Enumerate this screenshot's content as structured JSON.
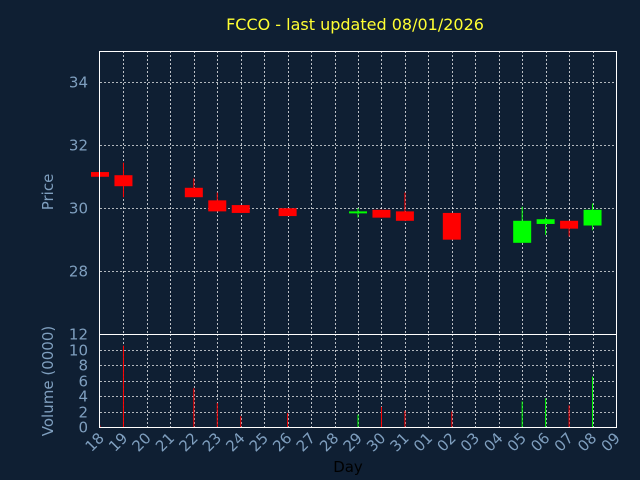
{
  "chart_data": {
    "type": "candlestick",
    "title": "FCCO - last updated 08/01/2026",
    "price_ylabel": "Price",
    "volume_ylabel": "Volume (0000)",
    "xlabel": "Day",
    "x_tick_labels": [
      "18",
      "19",
      "20",
      "21",
      "22",
      "23",
      "24",
      "25",
      "26",
      "27",
      "28",
      "29",
      "30",
      "31",
      "01",
      "02",
      "03",
      "04",
      "05",
      "06",
      "07",
      "08",
      "09"
    ],
    "price_yticks": [
      "28",
      "30",
      "32",
      "34"
    ],
    "volume_yticks": [
      "0",
      "2",
      "4",
      "6",
      "8",
      "10",
      "12"
    ],
    "price_ylim": [
      26,
      35
    ],
    "volume_ylim": [
      0,
      12
    ],
    "grid": true,
    "colors": {
      "background": "#0f1f33",
      "up": "#00ff00",
      "down": "#ff0000",
      "grid": "#ffffff",
      "axis_text": "#7f9fbf",
      "title": "#ffff33"
    },
    "candles": [
      {
        "day": "18",
        "open": 31.15,
        "close": 31.0,
        "high": 31.15,
        "low": 31.0,
        "volume": 0.2
      },
      {
        "day": "19",
        "open": 31.05,
        "close": 30.7,
        "high": 31.45,
        "low": 30.35,
        "volume": 10.5
      },
      {
        "day": "22",
        "open": 30.65,
        "close": 30.35,
        "high": 30.95,
        "low": 30.35,
        "volume": 5.0
      },
      {
        "day": "23",
        "open": 30.25,
        "close": 29.9,
        "high": 30.5,
        "low": 29.9,
        "volume": 3.1
      },
      {
        "day": "24",
        "open": 30.1,
        "close": 29.85,
        "high": 30.1,
        "low": 29.85,
        "volume": 1.4
      },
      {
        "day": "26",
        "open": 30.0,
        "close": 29.75,
        "high": 30.0,
        "low": 29.75,
        "volume": 1.8
      },
      {
        "day": "29",
        "open": 29.85,
        "close": 29.9,
        "high": 30.0,
        "low": 29.7,
        "volume": 1.6
      },
      {
        "day": "30",
        "open": 29.95,
        "close": 29.7,
        "high": 29.95,
        "low": 29.7,
        "volume": 2.6
      },
      {
        "day": "31",
        "open": 29.9,
        "close": 29.6,
        "high": 30.5,
        "low": 29.6,
        "volume": 2.1
      },
      {
        "day": "02",
        "open": 29.85,
        "close": 29.0,
        "high": 29.85,
        "low": 29.0,
        "volume": 2.0
      },
      {
        "day": "05",
        "open": 28.9,
        "close": 29.6,
        "high": 30.05,
        "low": 28.9,
        "volume": 3.3
      },
      {
        "day": "06",
        "open": 29.5,
        "close": 29.65,
        "high": 29.7,
        "low": 29.15,
        "volume": 3.7
      },
      {
        "day": "07",
        "open": 29.6,
        "close": 29.35,
        "high": 29.6,
        "low": 29.1,
        "volume": 2.8
      },
      {
        "day": "08",
        "open": 29.45,
        "close": 29.95,
        "high": 30.15,
        "low": 29.3,
        "volume": 6.5
      }
    ]
  }
}
